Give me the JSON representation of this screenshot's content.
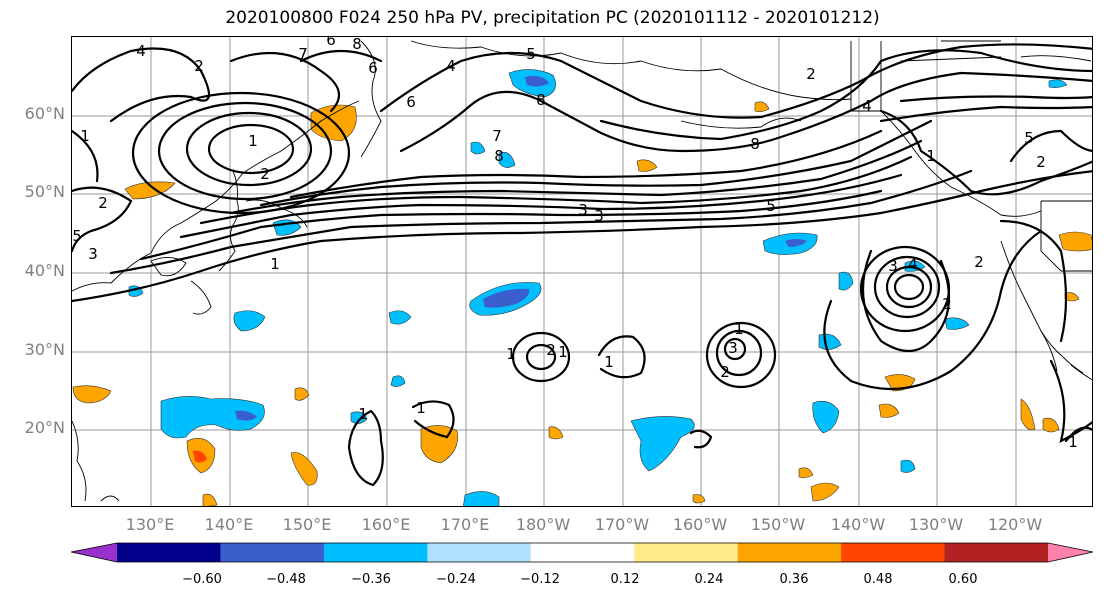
{
  "title": "2020100800 F024 250 hPa PV, precipitation PC (2020101112 - 2020101212)",
  "lat_labels": [
    "60°N",
    "50°N",
    "40°N",
    "30°N",
    "20°N"
  ],
  "lon_labels": [
    "130°E",
    "140°E",
    "150°E",
    "160°E",
    "170°E",
    "180°W",
    "170°W",
    "160°W",
    "150°W",
    "140°W",
    "130°W",
    "120°W"
  ],
  "colorbar": {
    "labels": [
      "−0.60",
      "−0.48",
      "−0.36",
      "−0.24",
      "−0.12",
      "0.12",
      "0.24",
      "0.36",
      "0.48",
      "0.60"
    ],
    "colors": [
      "#9932cc",
      "#00008b",
      "#3a5fcd",
      "#00bfff",
      "#b0e2ff",
      "#ffffff",
      "#ffec8b",
      "#ffa500",
      "#ff4500",
      "#b22222",
      "#ff82ab"
    ]
  },
  "contour_labels": [
    "4",
    "2",
    "7",
    "6",
    "8",
    "1",
    "2",
    "3",
    "5",
    "4",
    "6",
    "8",
    "7",
    "5",
    "1",
    "2",
    "6",
    "8",
    "1",
    "2",
    "8",
    "4",
    "5",
    "3",
    "3",
    "5",
    "1",
    "2",
    "3",
    "4",
    "2",
    "1",
    "1",
    "2",
    "1",
    "1",
    "3",
    "2",
    "1",
    "1",
    "2",
    "1"
  ]
}
